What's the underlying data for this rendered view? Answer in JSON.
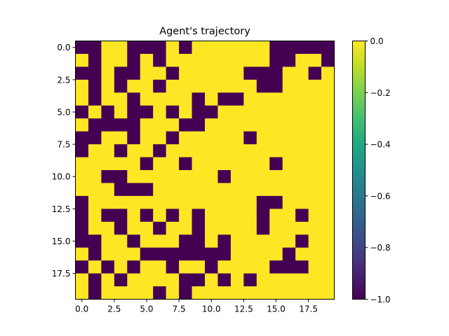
{
  "chart_data": {
    "type": "heatmap",
    "title": "Agent's trajectory",
    "xlabel": "",
    "ylabel": "",
    "rows": 20,
    "cols": 20,
    "xticks": [
      "0.0",
      "2.5",
      "5.0",
      "7.5",
      "10.0",
      "12.5",
      "15.0",
      "17.5"
    ],
    "yticks": [
      "0.0",
      "2.5",
      "5.0",
      "7.5",
      "10.0",
      "12.5",
      "15.0",
      "17.5"
    ],
    "tick_values": [
      0,
      2.5,
      5,
      7.5,
      10,
      12.5,
      15,
      17.5
    ],
    "colorbar": {
      "ticks": [
        "0.0",
        "−0.2",
        "−0.4",
        "−0.6",
        "−0.8",
        "−1.0"
      ],
      "tick_values": [
        0,
        -0.2,
        -0.4,
        -0.6,
        -0.8,
        -1.0
      ],
      "min": -1.0,
      "max": 0.0,
      "colormap": "viridis"
    },
    "colors": {
      "low": "#440154",
      "high": "#fde725"
    },
    "values": [
      [
        -1,
        -1,
        0,
        0,
        -1,
        -1,
        -1,
        0,
        -1,
        0,
        0,
        0,
        0,
        0,
        0,
        -1,
        -1,
        -1,
        -1,
        -1
      ],
      [
        0,
        -1,
        0,
        0,
        -1,
        0,
        -1,
        0,
        0,
        0,
        0,
        0,
        0,
        0,
        0,
        -1,
        -1,
        0,
        0,
        -1
      ],
      [
        -1,
        -1,
        0,
        -1,
        -1,
        0,
        0,
        -1,
        0,
        0,
        0,
        0,
        0,
        -1,
        -1,
        -1,
        0,
        0,
        -1,
        0
      ],
      [
        0,
        -1,
        0,
        -1,
        0,
        0,
        -1,
        0,
        0,
        0,
        0,
        0,
        0,
        0,
        -1,
        -1,
        0,
        0,
        0,
        0
      ],
      [
        0,
        -1,
        0,
        0,
        -1,
        0,
        0,
        0,
        0,
        -1,
        0,
        -1,
        -1,
        0,
        0,
        0,
        0,
        0,
        0,
        0
      ],
      [
        -1,
        0,
        -1,
        0,
        -1,
        -1,
        0,
        -1,
        0,
        -1,
        -1,
        0,
        0,
        0,
        0,
        0,
        0,
        0,
        0,
        0
      ],
      [
        0,
        -1,
        -1,
        -1,
        -1,
        0,
        0,
        0,
        -1,
        -1,
        0,
        0,
        0,
        0,
        0,
        0,
        0,
        0,
        0,
        0
      ],
      [
        -1,
        -1,
        0,
        0,
        -1,
        0,
        0,
        -1,
        0,
        0,
        0,
        0,
        0,
        -1,
        0,
        0,
        0,
        0,
        0,
        0
      ],
      [
        -1,
        0,
        0,
        -1,
        0,
        0,
        -1,
        0,
        0,
        0,
        0,
        0,
        0,
        0,
        0,
        0,
        0,
        0,
        0,
        0
      ],
      [
        0,
        0,
        0,
        0,
        0,
        -1,
        0,
        0,
        -1,
        0,
        0,
        0,
        0,
        0,
        0,
        -1,
        0,
        0,
        0,
        0
      ],
      [
        0,
        0,
        -1,
        -1,
        0,
        0,
        0,
        0,
        0,
        0,
        0,
        -1,
        0,
        0,
        0,
        0,
        0,
        0,
        0,
        0
      ],
      [
        0,
        0,
        0,
        -1,
        -1,
        -1,
        0,
        0,
        0,
        0,
        0,
        0,
        0,
        0,
        0,
        0,
        0,
        0,
        0,
        0
      ],
      [
        -1,
        0,
        0,
        0,
        0,
        0,
        0,
        0,
        0,
        0,
        0,
        0,
        0,
        0,
        -1,
        -1,
        0,
        0,
        0,
        0
      ],
      [
        -1,
        0,
        -1,
        -1,
        0,
        -1,
        0,
        -1,
        0,
        -1,
        0,
        0,
        0,
        0,
        -1,
        0,
        0,
        -1,
        0,
        0
      ],
      [
        -1,
        0,
        0,
        -1,
        0,
        0,
        -1,
        0,
        0,
        -1,
        0,
        0,
        0,
        0,
        -1,
        0,
        0,
        0,
        0,
        0
      ],
      [
        -1,
        -1,
        0,
        0,
        -1,
        0,
        0,
        0,
        -1,
        -1,
        0,
        -1,
        0,
        0,
        0,
        0,
        0,
        -1,
        0,
        0
      ],
      [
        0,
        -1,
        0,
        0,
        0,
        -1,
        -1,
        -1,
        -1,
        -1,
        -1,
        -1,
        0,
        0,
        0,
        0,
        -1,
        0,
        0,
        0
      ],
      [
        -1,
        0,
        -1,
        0,
        -1,
        0,
        0,
        -1,
        0,
        0,
        -1,
        0,
        0,
        0,
        0,
        -1,
        -1,
        -1,
        0,
        0
      ],
      [
        0,
        -1,
        0,
        -1,
        0,
        0,
        0,
        0,
        -1,
        -1,
        0,
        -1,
        0,
        -1,
        0,
        0,
        0,
        0,
        0,
        0
      ],
      [
        0,
        -1,
        0,
        0,
        0,
        0,
        -1,
        0,
        -1,
        0,
        0,
        0,
        0,
        0,
        0,
        0,
        0,
        0,
        0,
        0
      ]
    ]
  }
}
